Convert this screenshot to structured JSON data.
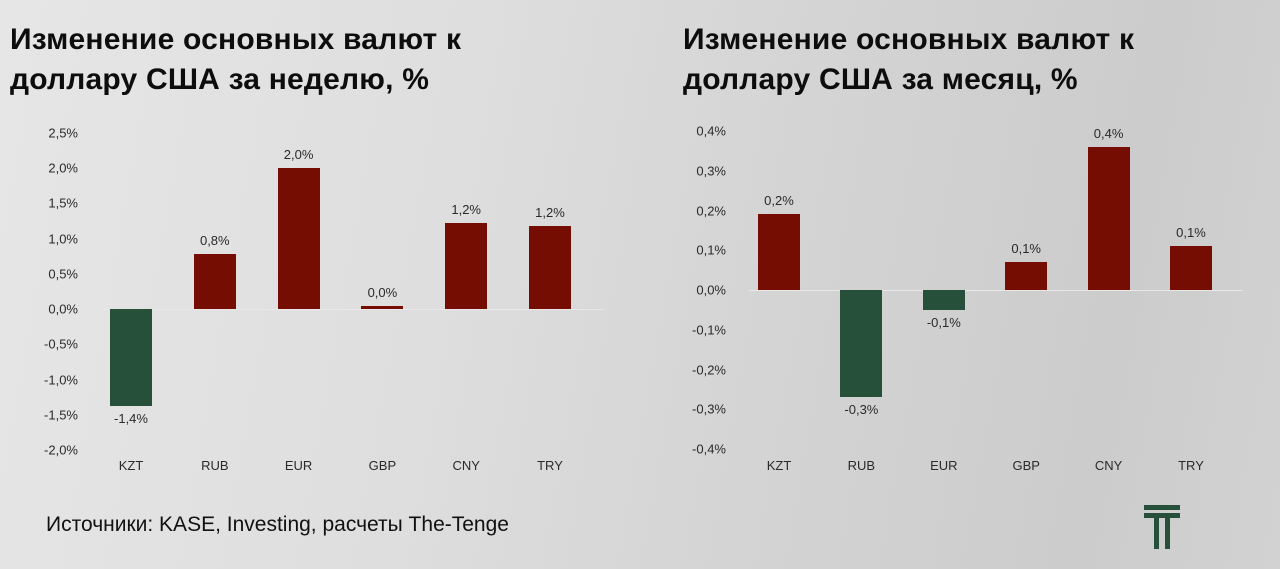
{
  "colors": {
    "positive": "#760d02",
    "negative": "#27503a",
    "logo": "#27503a"
  },
  "left": {
    "title_line1": "Изменение основных валют к",
    "title_line2": "доллару США за неделю, %"
  },
  "right": {
    "title_line1": "Изменение основных валют к",
    "title_line2": "доллару США за месяц, %"
  },
  "source": "Источники: KASE, Investing, расчеты The-Tenge",
  "logo": {
    "icon": "tenge-t-logo-icon"
  },
  "chart_data": [
    {
      "type": "bar",
      "title": "Изменение основных валют к доллару США за неделю, %",
      "categories": [
        "KZT",
        "RUB",
        "EUR",
        "GBP",
        "CNY",
        "TRY"
      ],
      "values": [
        -1.37,
        0.78,
        2.0,
        0.03,
        1.22,
        1.18
      ],
      "data_labels": [
        "-1,4%",
        "0,8%",
        "2,0%",
        "0,0%",
        "1,2%",
        "1,2%"
      ],
      "yticks": [
        "2,5%",
        "2,0%",
        "1,5%",
        "1,0%",
        "0,5%",
        "0,0%",
        "-0,5%",
        "-1,0%",
        "-1,5%",
        "-2,0%"
      ],
      "ylim": [
        -2.0,
        2.5
      ],
      "xlabel": "",
      "ylabel": "",
      "grid": false,
      "legend": "none"
    },
    {
      "type": "bar",
      "title": "Изменение основных валют к доллару США за месяц, %",
      "categories": [
        "KZT",
        "RUB",
        "EUR",
        "GBP",
        "CNY",
        "TRY"
      ],
      "values": [
        0.19,
        -0.27,
        -0.05,
        0.07,
        0.36,
        0.11
      ],
      "data_labels": [
        "0,2%",
        "-0,3%",
        "-0,1%",
        "0,1%",
        "0,4%",
        "0,1%"
      ],
      "yticks": [
        "0,4%",
        "0,3%",
        "0,2%",
        "0,1%",
        "0,0%",
        "-0,1%",
        "-0,2%",
        "-0,3%",
        "-0,4%"
      ],
      "ylim": [
        -0.4,
        0.4
      ],
      "xlabel": "",
      "ylabel": "",
      "grid": false,
      "legend": "none"
    }
  ]
}
